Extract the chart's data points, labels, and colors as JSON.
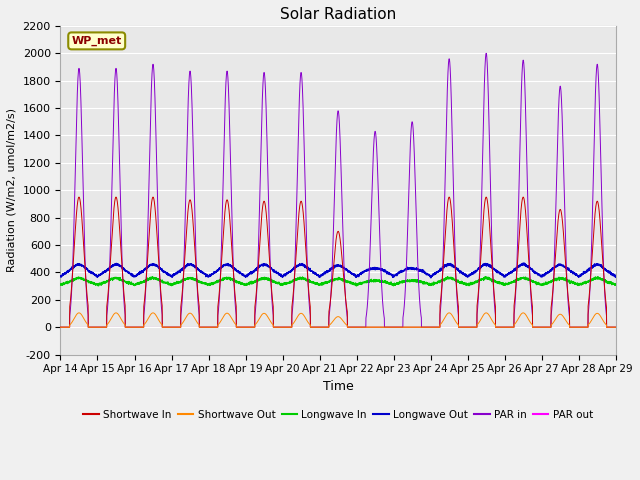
{
  "title": "Solar Radiation",
  "ylabel": "Radiation (W/m2, umol/m2/s)",
  "xlabel": "Time",
  "ylim": [
    -200,
    2200
  ],
  "yticks": [
    -200,
    0,
    200,
    400,
    600,
    800,
    1000,
    1200,
    1400,
    1600,
    1800,
    2000,
    2200
  ],
  "date_labels": [
    "Apr 14",
    "Apr 15",
    "Apr 16",
    "Apr 17",
    "Apr 18",
    "Apr 19",
    "Apr 20",
    "Apr 21",
    "Apr 22",
    "Apr 23",
    "Apr 24",
    "Apr 25",
    "Apr 26",
    "Apr 27",
    "Apr 28",
    "Apr 29"
  ],
  "station_label": "WP_met",
  "colors": {
    "shortwave_in": "#CC0000",
    "shortwave_out": "#FF8800",
    "longwave_in": "#00CC00",
    "longwave_out": "#0000CC",
    "par_in": "#8800CC",
    "par_out": "#FF00FF"
  },
  "legend": [
    {
      "label": "Shortwave In",
      "color": "#CC0000"
    },
    {
      "label": "Shortwave Out",
      "color": "#FF8800"
    },
    {
      "label": "Longwave In",
      "color": "#00CC00"
    },
    {
      "label": "Longwave Out",
      "color": "#0000CC"
    },
    {
      "label": "PAR in",
      "color": "#8800CC"
    },
    {
      "label": "PAR out",
      "color": "#FF00FF"
    }
  ],
  "sw_peaks": [
    950,
    950,
    950,
    930,
    930,
    920,
    920,
    700,
    0,
    0,
    950,
    950,
    950,
    860,
    920
  ],
  "par_peaks": [
    1890,
    1890,
    1920,
    1870,
    1870,
    1860,
    1860,
    1580,
    1430,
    1500,
    1960,
    2000,
    1950,
    1760,
    1920
  ],
  "lw_in_base": 310,
  "lw_out_base": 370,
  "fig_bg": "#F0F0F0",
  "ax_bg": "#E8E8E8"
}
